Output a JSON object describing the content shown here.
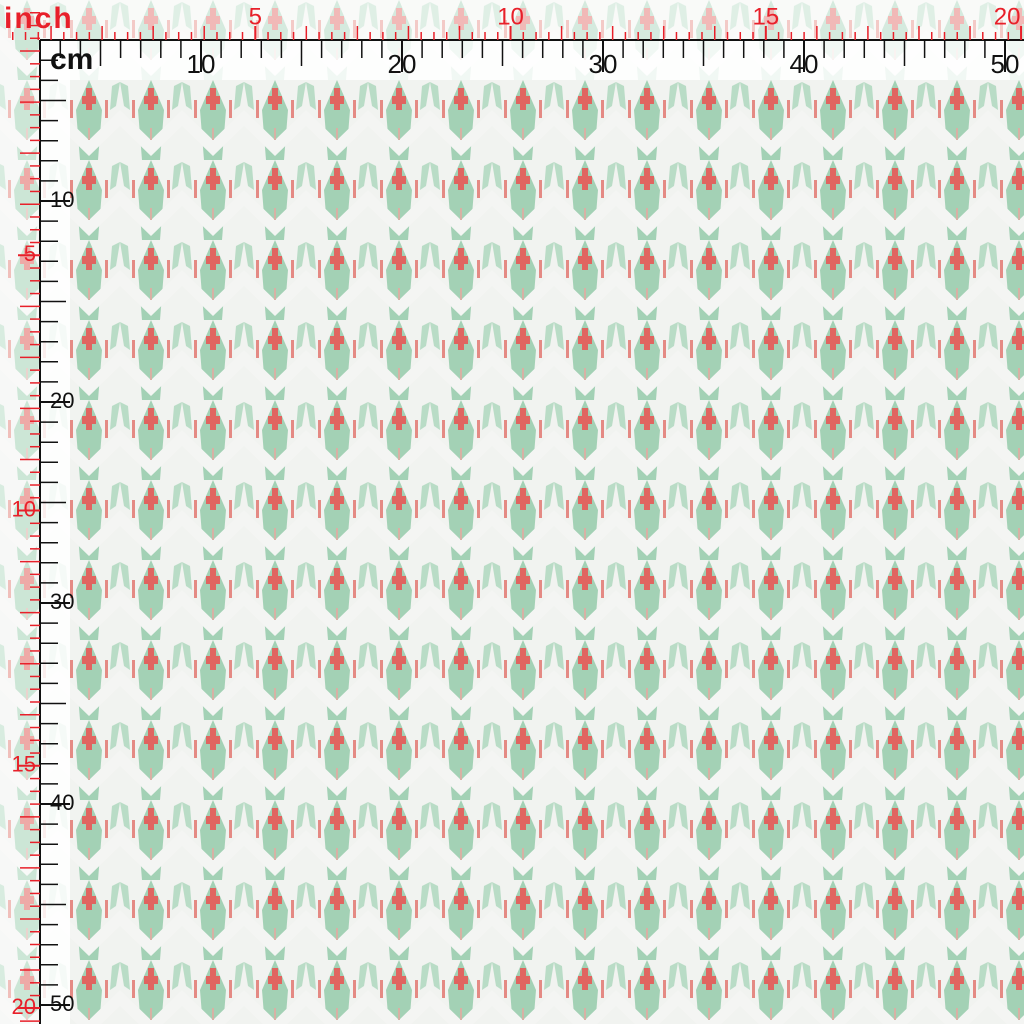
{
  "top_ruler": {
    "inch_label": "inch",
    "inch_ticks": [
      5,
      10,
      15,
      20
    ],
    "cm_label": "cm",
    "cm_ticks": [
      10,
      20,
      30,
      40,
      50
    ]
  },
  "left_ruler": {
    "cm_ticks": [
      10,
      20,
      30,
      40,
      50
    ],
    "inch_ticks": [
      5,
      10,
      15,
      20
    ]
  }
}
